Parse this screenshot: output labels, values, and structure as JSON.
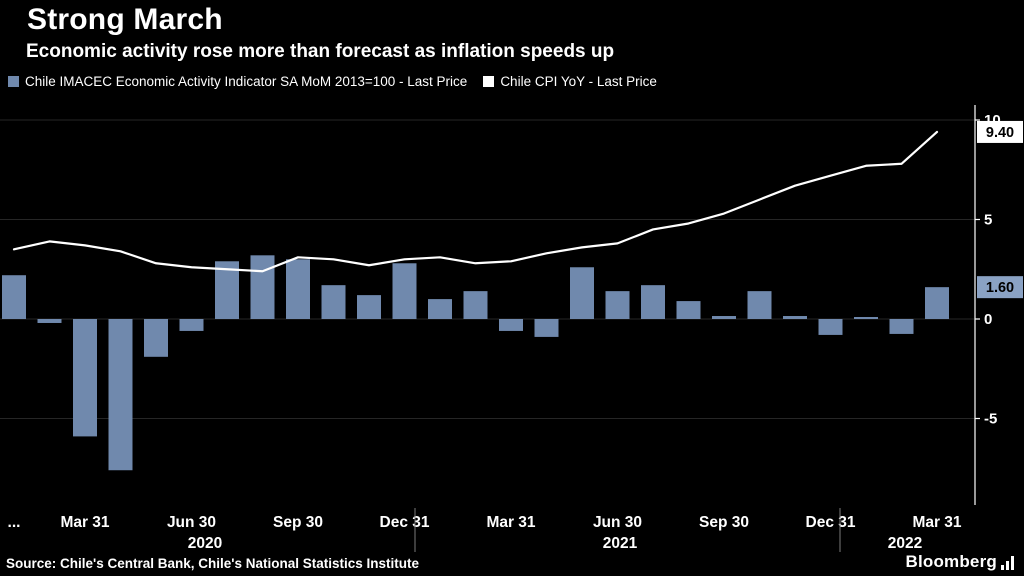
{
  "header": {
    "title": "Strong March",
    "subtitle": "Economic activity rose more than forecast as inflation speeds up"
  },
  "legend": {
    "items": [
      {
        "label": "Chile IMACEC Economic Activity Indicator SA MoM 2013=100 - Last Price",
        "color": "#7089ad"
      },
      {
        "label": "Chile CPI YoY - Last Price",
        "color": "#ffffff"
      }
    ]
  },
  "chart_data": {
    "type": "combo",
    "background": "#000000",
    "categories": [
      "Jan 2020",
      "Feb 2020",
      "Mar 2020",
      "Apr 2020",
      "May 2020",
      "Jun 2020",
      "Jul 2020",
      "Aug 2020",
      "Sep 2020",
      "Oct 2020",
      "Nov 2020",
      "Dec 2020",
      "Jan 2021",
      "Feb 2021",
      "Mar 2021",
      "Apr 2021",
      "May 2021",
      "Jun 2021",
      "Jul 2021",
      "Aug 2021",
      "Sep 2021",
      "Oct 2021",
      "Nov 2021",
      "Dec 2021",
      "Jan 2022",
      "Feb 2022",
      "Mar 2022"
    ],
    "series": [
      {
        "name": "Chile IMACEC Economic Activity Indicator SA MoM 2013=100 - Last Price",
        "type": "bar",
        "color": "#7089ad",
        "values": [
          2.2,
          -0.2,
          -5.9,
          -7.6,
          -1.9,
          -0.6,
          2.9,
          3.2,
          3.0,
          1.7,
          1.2,
          2.8,
          1.0,
          1.4,
          -0.6,
          -0.9,
          2.6,
          1.4,
          1.7,
          0.9,
          0.15,
          1.4,
          0.15,
          -0.8,
          0.1,
          -0.75,
          1.6
        ]
      },
      {
        "name": "Chile CPI YoY - Last Price",
        "type": "line",
        "color": "#ffffff",
        "values": [
          3.5,
          3.9,
          3.7,
          3.4,
          2.8,
          2.6,
          2.5,
          2.4,
          3.1,
          3.0,
          2.7,
          3.0,
          3.1,
          2.8,
          2.9,
          3.3,
          3.6,
          3.8,
          4.5,
          4.8,
          5.3,
          6.0,
          6.7,
          7.2,
          7.7,
          7.8,
          9.4
        ]
      }
    ],
    "y_axis": {
      "side": "right",
      "ticks": [
        10,
        5,
        0,
        -5
      ],
      "range": [
        -8.5,
        10.8
      ],
      "color": "#ffffff"
    },
    "x_axis": {
      "ticks": [
        {
          "i": 0,
          "label": "..."
        },
        {
          "i": 2,
          "label": "Mar 31"
        },
        {
          "i": 5,
          "label": "Jun 30"
        },
        {
          "i": 8,
          "label": "Sep 30"
        },
        {
          "i": 11,
          "label": "Dec 31"
        },
        {
          "i": 14,
          "label": "Mar 31"
        },
        {
          "i": 17,
          "label": "Jun 30"
        },
        {
          "i": 20,
          "label": "Sep 30"
        },
        {
          "i": 23,
          "label": "Dec 31"
        },
        {
          "i": 26,
          "label": "Mar 31"
        }
      ],
      "years": [
        {
          "x": 205,
          "label": "2020"
        },
        {
          "x": 620,
          "label": "2021"
        },
        {
          "x": 905,
          "label": "2022"
        }
      ],
      "dividers": [
        415,
        840
      ]
    },
    "badges": [
      {
        "label": "9.40",
        "value": 9.4,
        "bg": "#ffffff",
        "fg": "#000000"
      },
      {
        "label": "1.60",
        "value": 1.6,
        "bg": "#8aa2c4",
        "fg": "#000000"
      }
    ],
    "grid": true,
    "legend_position": "top",
    "title": "Strong March",
    "subtitle": "Economic activity rose more than forecast as inflation speeds up"
  },
  "footer": {
    "source": "Source: Chile's Central Bank, Chile's National Statistics Institute",
    "brand": "Bloomberg"
  }
}
